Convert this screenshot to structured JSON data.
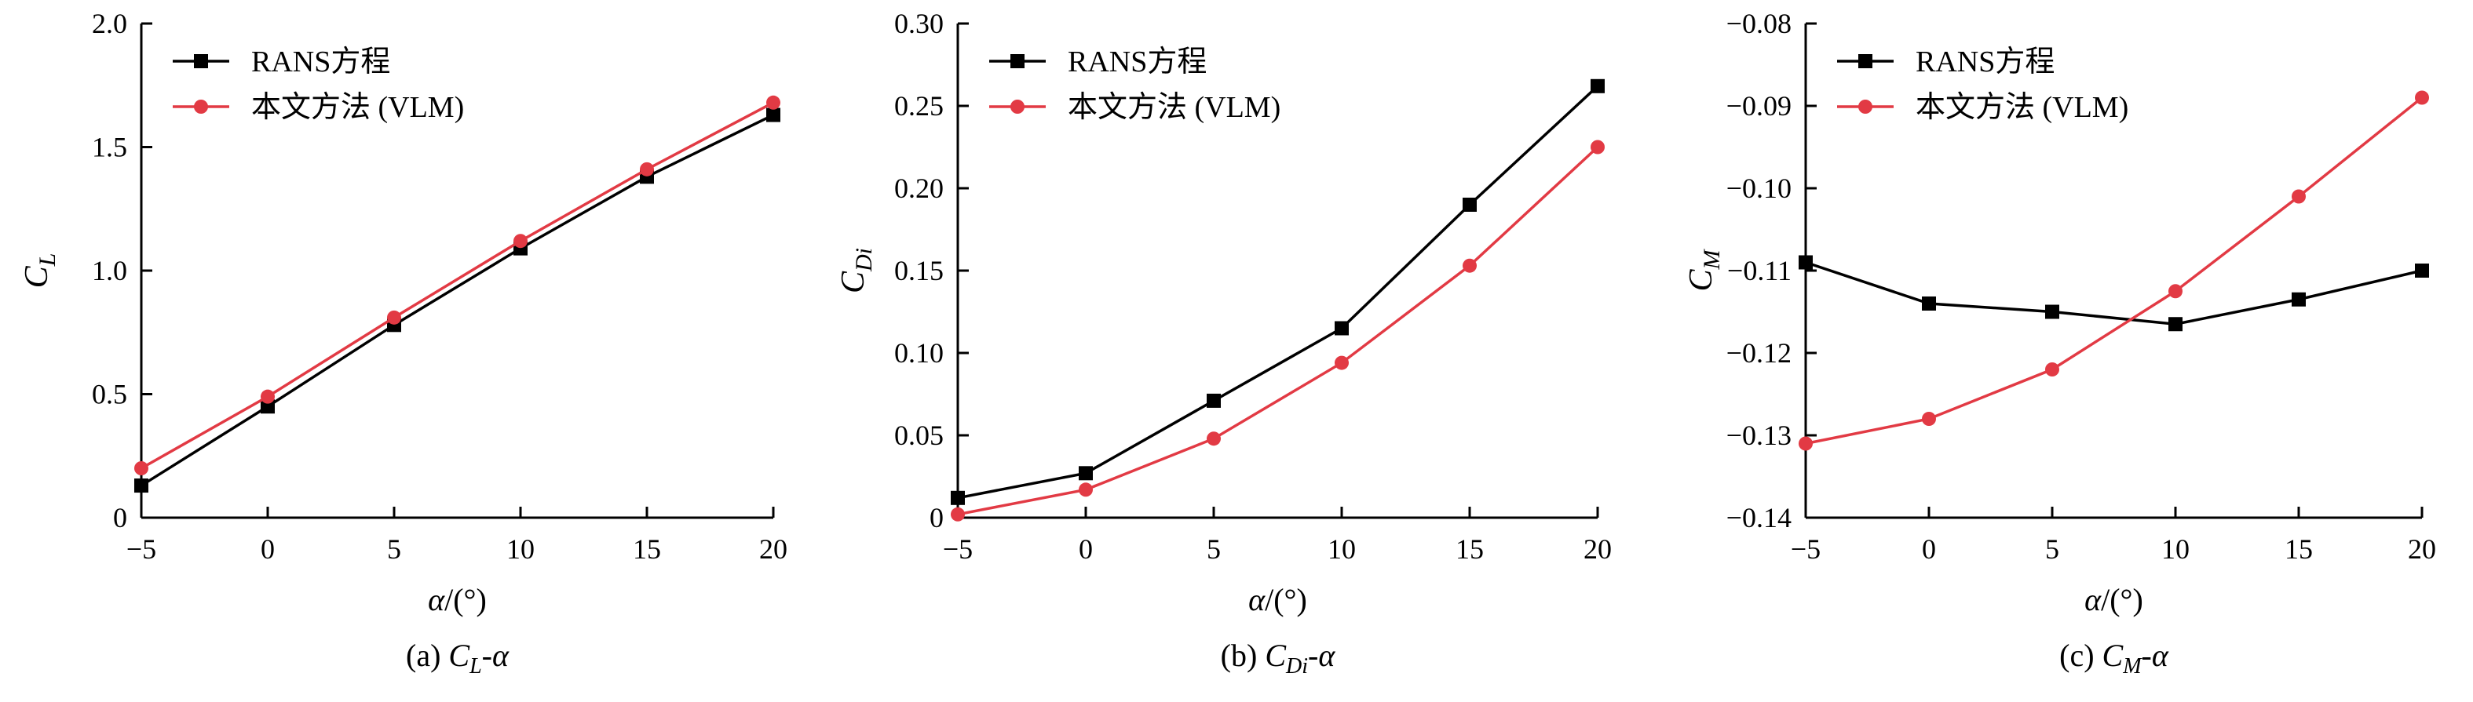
{
  "figure": {
    "background": "#ffffff",
    "axis_color": "#000000"
  },
  "legend": {
    "items": [
      {
        "label": "RANS方程",
        "marker": "square",
        "color": "#000000"
      },
      {
        "label": "本文方法 (VLM)",
        "marker": "circle",
        "color": "#e23a44"
      }
    ]
  },
  "chart_data": [
    {
      "id": "a",
      "type": "line",
      "xlabel": {
        "sym": "α",
        "rest": "/(°)"
      },
      "ylabel": {
        "sym": "C",
        "sub": "L"
      },
      "caption": {
        "prefix": "(a) ",
        "sym": "C",
        "sub": "L",
        "suffix": "-α"
      },
      "x": [
        -5,
        0,
        5,
        10,
        15,
        20
      ],
      "xlim": [
        -5,
        20
      ],
      "xticks": [
        -5,
        0,
        5,
        10,
        15,
        20
      ],
      "xtick_labels": [
        "−5",
        "0",
        "5",
        "10",
        "15",
        "20"
      ],
      "ylim": [
        0,
        2.0
      ],
      "yticks": [
        0,
        0.5,
        1.0,
        1.5,
        2.0
      ],
      "ytick_labels": [
        "0",
        "0.5",
        "1.0",
        "1.5",
        "2.0"
      ],
      "margin_left": 180,
      "grid": false,
      "legend_position": "top-left",
      "series": [
        {
          "name": "RANS方程",
          "marker": "square",
          "color": "#000000",
          "values": [
            0.13,
            0.45,
            0.78,
            1.09,
            1.38,
            1.63
          ]
        },
        {
          "name": "本文方法 (VLM)",
          "marker": "circle",
          "color": "#e23a44",
          "values": [
            0.2,
            0.49,
            0.81,
            1.12,
            1.41,
            1.68
          ]
        }
      ]
    },
    {
      "id": "b",
      "type": "line",
      "xlabel": {
        "sym": "α",
        "rest": "/(°)"
      },
      "ylabel": {
        "sym": "C",
        "sub": "Di"
      },
      "caption": {
        "prefix": "(b) ",
        "sym": "C",
        "sub": "Di",
        "suffix": "-α"
      },
      "x": [
        -5,
        0,
        5,
        10,
        15,
        20
      ],
      "xlim": [
        -5,
        20
      ],
      "xticks": [
        -5,
        0,
        5,
        10,
        15,
        20
      ],
      "xtick_labels": [
        "−5",
        "0",
        "5",
        "10",
        "15",
        "20"
      ],
      "ylim": [
        0,
        0.3
      ],
      "yticks": [
        0,
        0.05,
        0.1,
        0.15,
        0.2,
        0.25,
        0.3
      ],
      "ytick_labels": [
        "0",
        "0.05",
        "0.10",
        "0.15",
        "0.20",
        "0.25",
        "0.30"
      ],
      "margin_left": 170,
      "grid": false,
      "legend_position": "top-left",
      "series": [
        {
          "name": "RANS方程",
          "marker": "square",
          "color": "#000000",
          "values": [
            0.012,
            0.027,
            0.071,
            0.115,
            0.19,
            0.262
          ]
        },
        {
          "name": "本文方法 (VLM)",
          "marker": "circle",
          "color": "#e23a44",
          "values": [
            0.002,
            0.017,
            0.048,
            0.094,
            0.153,
            0.225
          ]
        }
      ]
    },
    {
      "id": "c",
      "type": "line",
      "xlabel": {
        "sym": "α",
        "rest": "/(°)"
      },
      "ylabel": {
        "sym": "C",
        "sub": "M"
      },
      "caption": {
        "prefix": "(c) ",
        "sym": "C",
        "sub": "M",
        "suffix": "-α"
      },
      "x": [
        -5,
        0,
        5,
        10,
        15,
        20
      ],
      "xlim": [
        -5,
        20
      ],
      "xticks": [
        -5,
        0,
        5,
        10,
        15,
        20
      ],
      "xtick_labels": [
        "−5",
        "0",
        "5",
        "10",
        "15",
        "20"
      ],
      "ylim": [
        -0.14,
        -0.08
      ],
      "yticks": [
        -0.14,
        -0.13,
        -0.12,
        -0.11,
        -0.1,
        -0.09,
        -0.08
      ],
      "ytick_labels": [
        "−0.14",
        "−0.13",
        "−0.12",
        "−0.11",
        "−0.10",
        "−0.09",
        "−0.08"
      ],
      "margin_left": 200,
      "grid": false,
      "legend_position": "top-left",
      "series": [
        {
          "name": "RANS方程",
          "marker": "square",
          "color": "#000000",
          "values": [
            -0.109,
            -0.114,
            -0.115,
            -0.1165,
            -0.1135,
            -0.11
          ]
        },
        {
          "name": "本文方法 (VLM)",
          "marker": "circle",
          "color": "#e23a44",
          "values": [
            -0.131,
            -0.128,
            -0.122,
            -0.1125,
            -0.101,
            -0.089
          ]
        }
      ]
    }
  ]
}
